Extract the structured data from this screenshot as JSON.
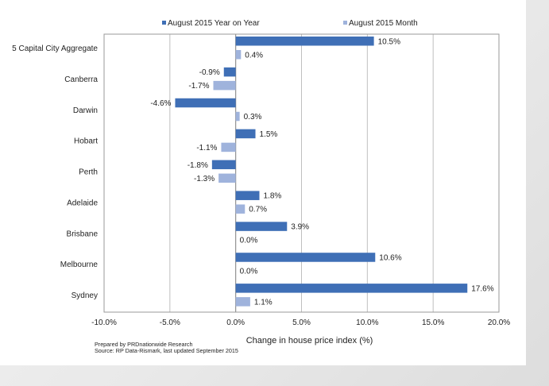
{
  "chart_data": {
    "type": "bar",
    "orientation": "horizontal",
    "categories": [
      "5 Capital City Aggregate",
      "Canberra",
      "Darwin",
      "Hobart",
      "Perth",
      "Adelaide",
      "Brisbane",
      "Melbourne",
      "Sydney"
    ],
    "series": [
      {
        "name": "August 2015 Year on Year",
        "color": "#3f6fb6",
        "values": [
          10.5,
          -0.9,
          -4.6,
          1.5,
          -1.8,
          1.8,
          3.9,
          10.6,
          17.6
        ],
        "labels": [
          "10.5%",
          "-0.9%",
          "-4.6%",
          "1.5%",
          "-1.8%",
          "1.8%",
          "3.9%",
          "10.6%",
          "17.6%"
        ]
      },
      {
        "name": "August 2015 Month",
        "color": "#9fb3dc",
        "values": [
          0.4,
          -1.7,
          0.3,
          -1.1,
          -1.3,
          0.7,
          0.0,
          0.0,
          1.1
        ],
        "labels": [
          "0.4%",
          "-1.7%",
          "0.3%",
          "-1.1%",
          "-1.3%",
          "0.7%",
          "0.0%",
          "0.0%",
          "1.1%"
        ]
      }
    ],
    "xlim": [
      -10,
      20
    ],
    "xticks": [
      -10,
      -5,
      0,
      5,
      10,
      15,
      20
    ],
    "xtick_labels": [
      "-10.0%",
      "-5.0%",
      "0.0%",
      "5.0%",
      "10.0%",
      "15.0%",
      "20.0%"
    ],
    "xlabel": "Change in house price index (%)",
    "ylabel": "",
    "title": "",
    "grid": true,
    "legend": "top-center"
  },
  "footnote": {
    "prepared": "Prepared by PRDnationwide Research",
    "source": "Source: RP Data-Rismark, last updated September 2015"
  }
}
